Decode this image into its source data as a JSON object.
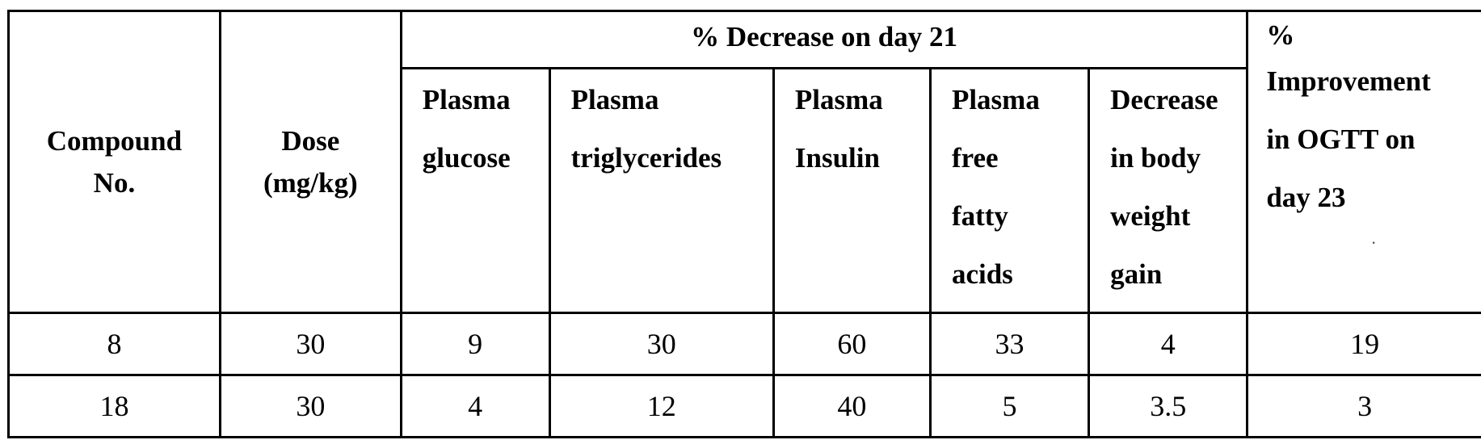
{
  "table": {
    "headers": {
      "compound": [
        "Compound",
        "No."
      ],
      "dose": [
        "Dose",
        "(mg/kg)"
      ],
      "group_label": "% Decrease on day 21",
      "sub": [
        [
          "Plasma",
          "glucose"
        ],
        [
          "Plasma",
          "triglycerides"
        ],
        [
          "Plasma",
          "Insulin"
        ],
        [
          "Plasma",
          "free",
          "fatty",
          "acids"
        ],
        [
          "Decrease",
          "in body",
          "weight",
          "gain"
        ]
      ],
      "ogtt": [
        "%",
        "Improvement",
        "in OGTT on",
        "day 23"
      ]
    },
    "rows": [
      [
        "8",
        "30",
        "9",
        "30",
        "60",
        "33",
        "4",
        "19"
      ],
      [
        "18",
        "30",
        "4",
        "12",
        "40",
        "5",
        "3.5",
        "3"
      ]
    ]
  }
}
